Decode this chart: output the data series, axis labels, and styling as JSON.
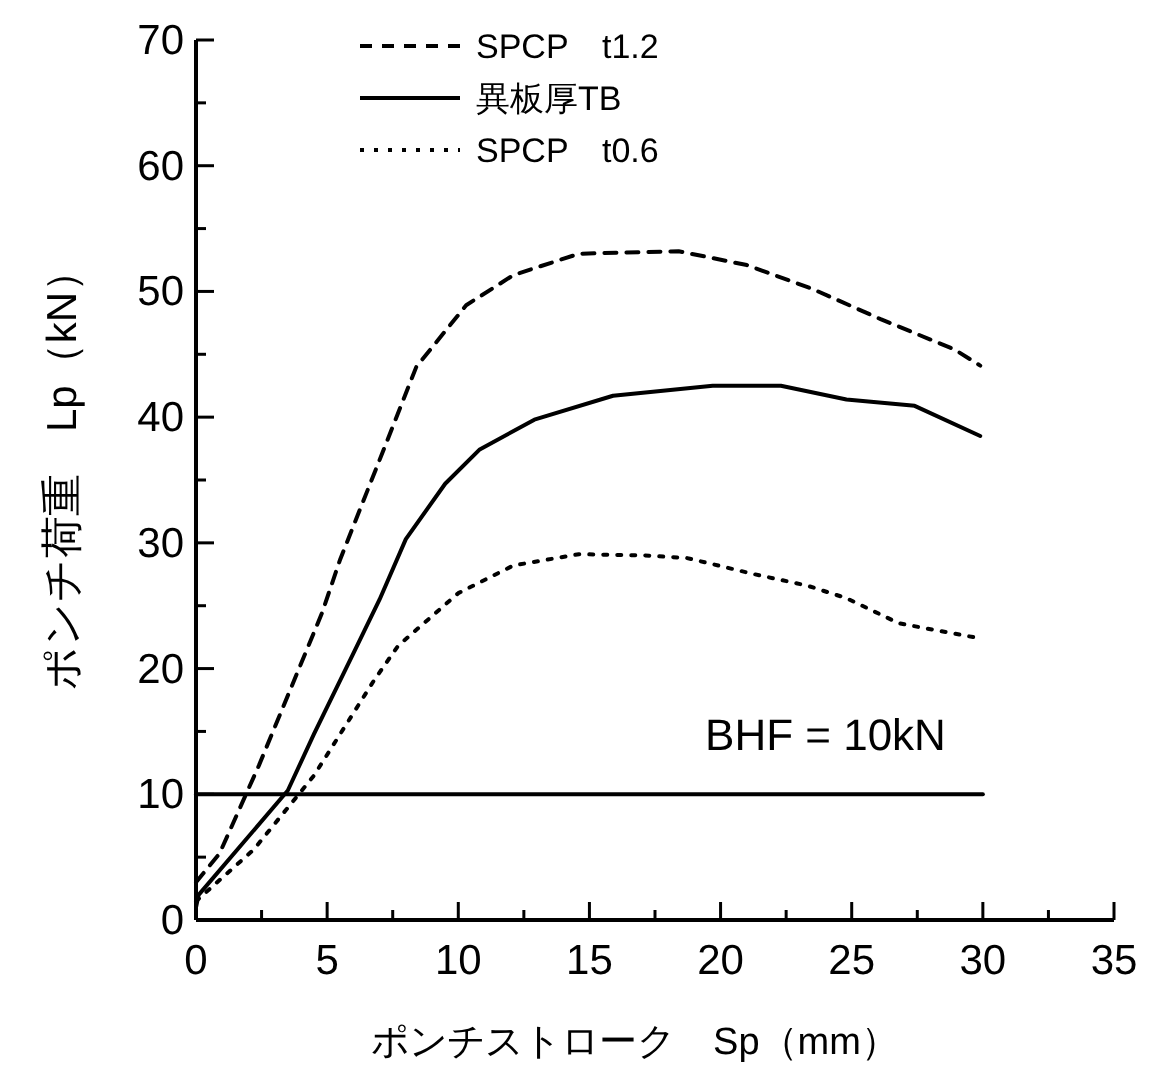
{
  "chart_data": {
    "type": "line",
    "xlabel": "ポンチストローク　Sp（mm）",
    "ylabel": "ポンチ荷重　Lp（kN）",
    "xlim": [
      0,
      35
    ],
    "ylim": [
      0,
      70
    ],
    "xticks": [
      0,
      {
        "value": 2.5,
        "label": null
      },
      5,
      {
        "value": 7.5,
        "label": null
      },
      10,
      {
        "value": 12.5,
        "label": null
      },
      15,
      {
        "value": 17.5,
        "label": null
      },
      20,
      {
        "value": 22.5,
        "label": null
      },
      25,
      {
        "value": 27.5,
        "label": null
      },
      30,
      {
        "value": 32.5,
        "label": null
      },
      35
    ],
    "yticks": [
      0,
      {
        "value": 5,
        "label": null
      },
      10,
      {
        "value": 15,
        "label": null
      },
      20,
      {
        "value": 25,
        "label": null
      },
      30,
      {
        "value": 35,
        "label": null
      },
      40,
      {
        "value": 45,
        "label": null
      },
      50,
      {
        "value": 55,
        "label": null
      },
      60,
      {
        "value": 65,
        "label": null
      },
      70
    ],
    "legend": "top left",
    "grid": false,
    "marker": "none",
    "annotations": [
      {
        "text": "BHF = 10kN",
        "x": 24,
        "y": 10
      }
    ],
    "series": [
      {
        "name": "SPCP　t1.2",
        "color": "#000000",
        "line_style": "dashed",
        "x": [
          0,
          0.9,
          2.4,
          4.8,
          5.5,
          7.0,
          8.4,
          10.3,
          12.1,
          14.6,
          18.4,
          21.0,
          23.5,
          26.1,
          28.9,
          29.9
        ],
        "values": [
          3,
          5.3,
          12.3,
          24.4,
          28.7,
          36.6,
          44,
          48.9,
          51.3,
          53.0,
          53.2,
          52.1,
          50.2,
          47.8,
          45.4,
          44.1
        ]
      },
      {
        "name": "異板厚TB",
        "color": "#000000",
        "line_style": "solid",
        "x": [
          0,
          0.1,
          3.5,
          4.5,
          6.0,
          7.0,
          8.0,
          9.5,
          10.8,
          12.9,
          15.9,
          19.7,
          22.3,
          24.8,
          27.4,
          29.9
        ],
        "values": [
          1,
          2,
          10.3,
          14.8,
          21.2,
          25.5,
          30.3,
          34.7,
          37.4,
          39.8,
          41.7,
          42.5,
          42.5,
          41.4,
          40.9,
          38.5
        ]
      },
      {
        "name": "SPCP　t0.6",
        "color": "#000000",
        "line_style": "dotted",
        "x": [
          0,
          2.2,
          4.5,
          6.8,
          7.7,
          10.0,
          12.1,
          14.6,
          17.1,
          18.7,
          21.3,
          23.3,
          24.8,
          26.8,
          29.9
        ],
        "values": [
          1.5,
          5.6,
          11.5,
          19.1,
          21.8,
          26,
          28.2,
          29.1,
          29.0,
          28.8,
          27.5,
          26.6,
          25.6,
          23.6,
          22.4
        ]
      },
      {
        "color": "#000000",
        "line_style": "solid",
        "x": [
          0,
          30
        ],
        "values": [
          10,
          10
        ]
      }
    ]
  }
}
